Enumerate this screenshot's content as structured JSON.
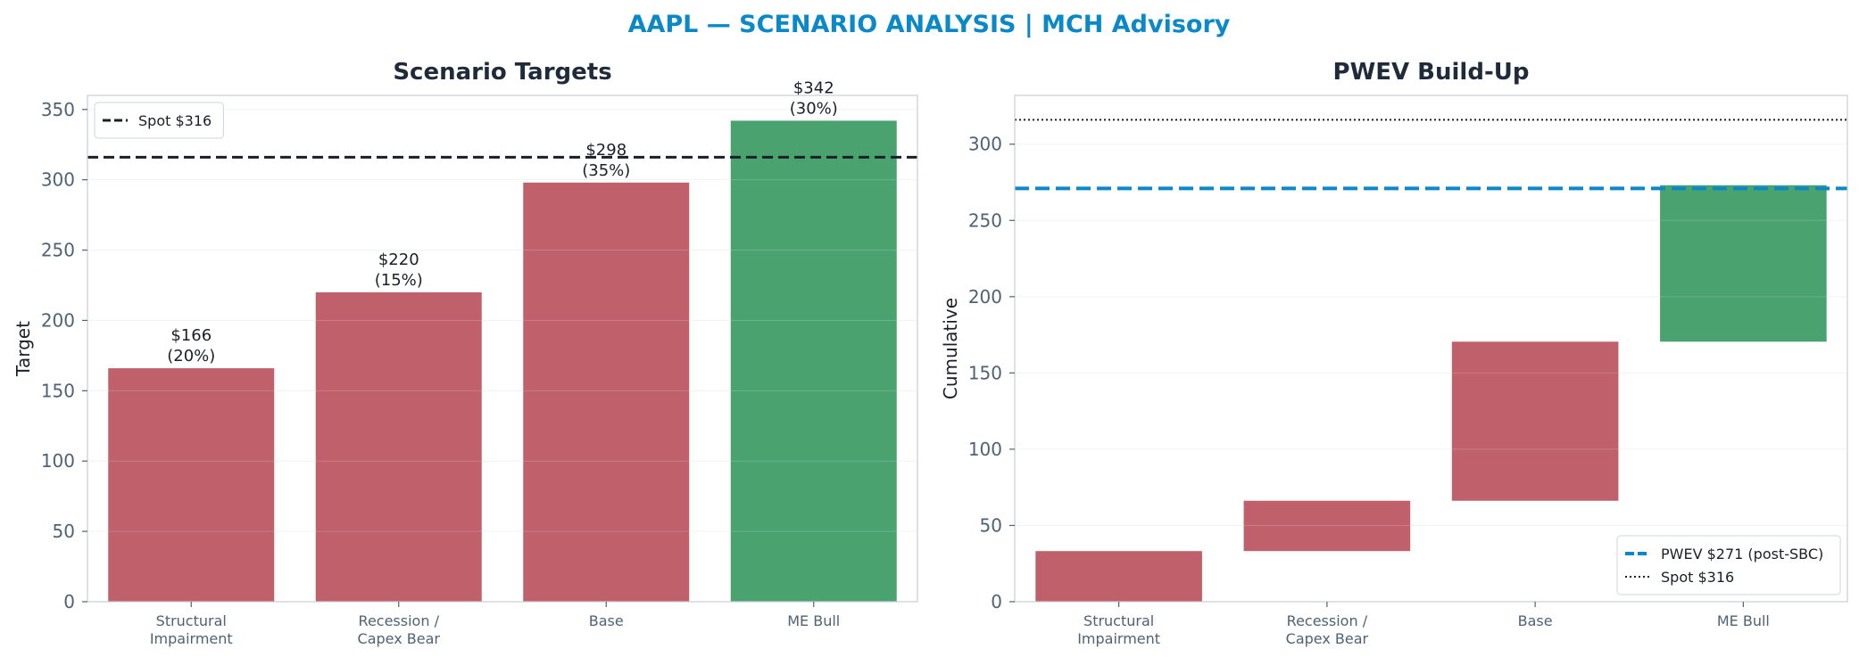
{
  "suptitle": "AAPL — SCENARIO ANALYSIS | MCH Advisory",
  "colors": {
    "accent": "#0a88c8",
    "title": "#1f2a3a",
    "tick": "#4f6275",
    "spine": "#c7ced6",
    "grid": "#eef1f4",
    "bear": "#c0606a",
    "bull": "#4aa26e",
    "dark": "#1a1f2a"
  },
  "chart_data": [
    {
      "type": "bar",
      "title": "Scenario Targets",
      "xlabel": "",
      "ylabel": "Target",
      "categories": [
        "Structural\nImpairment",
        "Recession /\nCapex Bear",
        "Base",
        "ME Bull"
      ],
      "values": [
        166,
        220,
        298,
        342
      ],
      "bar_colors": [
        "bear",
        "bear",
        "bear",
        "bull"
      ],
      "data_labels": [
        {
          "value": "$166",
          "weight": "(20%)"
        },
        {
          "value": "$220",
          "weight": "(15%)"
        },
        {
          "value": "$298",
          "weight": "(35%)"
        },
        {
          "value": "$342",
          "weight": "(30%)"
        }
      ],
      "ylim": [
        0,
        360
      ],
      "yticks": [
        0,
        50,
        100,
        150,
        200,
        250,
        300,
        350
      ],
      "grid": true,
      "reference_lines": [
        {
          "label": "Spot $316",
          "y": 316,
          "style": "dashed",
          "color": "dark"
        }
      ],
      "legend_position": "top-left"
    },
    {
      "type": "waterfall",
      "title": "PWEV Build-Up",
      "xlabel": "",
      "ylabel": "Cumulative",
      "categories": [
        "Structural\nImpairment",
        "Recession /\nCapex Bear",
        "Base",
        "ME Bull"
      ],
      "segments": [
        {
          "start": 0,
          "end": 33.2
        },
        {
          "start": 33.2,
          "end": 66.2
        },
        {
          "start": 66.2,
          "end": 170.5
        },
        {
          "start": 170.5,
          "end": 273.1
        }
      ],
      "bar_colors": [
        "bear",
        "bear",
        "bear",
        "bull"
      ],
      "ylim": [
        0,
        332
      ],
      "yticks": [
        0,
        50,
        100,
        150,
        200,
        250,
        300
      ],
      "grid": true,
      "reference_lines": [
        {
          "label": "PWEV $271 (post-SBC)",
          "y": 271,
          "style": "thick-dashed",
          "color": "accent"
        },
        {
          "label": "Spot $316",
          "y": 316,
          "style": "dotted",
          "color": "dark"
        }
      ],
      "legend_position": "bottom-right"
    }
  ]
}
